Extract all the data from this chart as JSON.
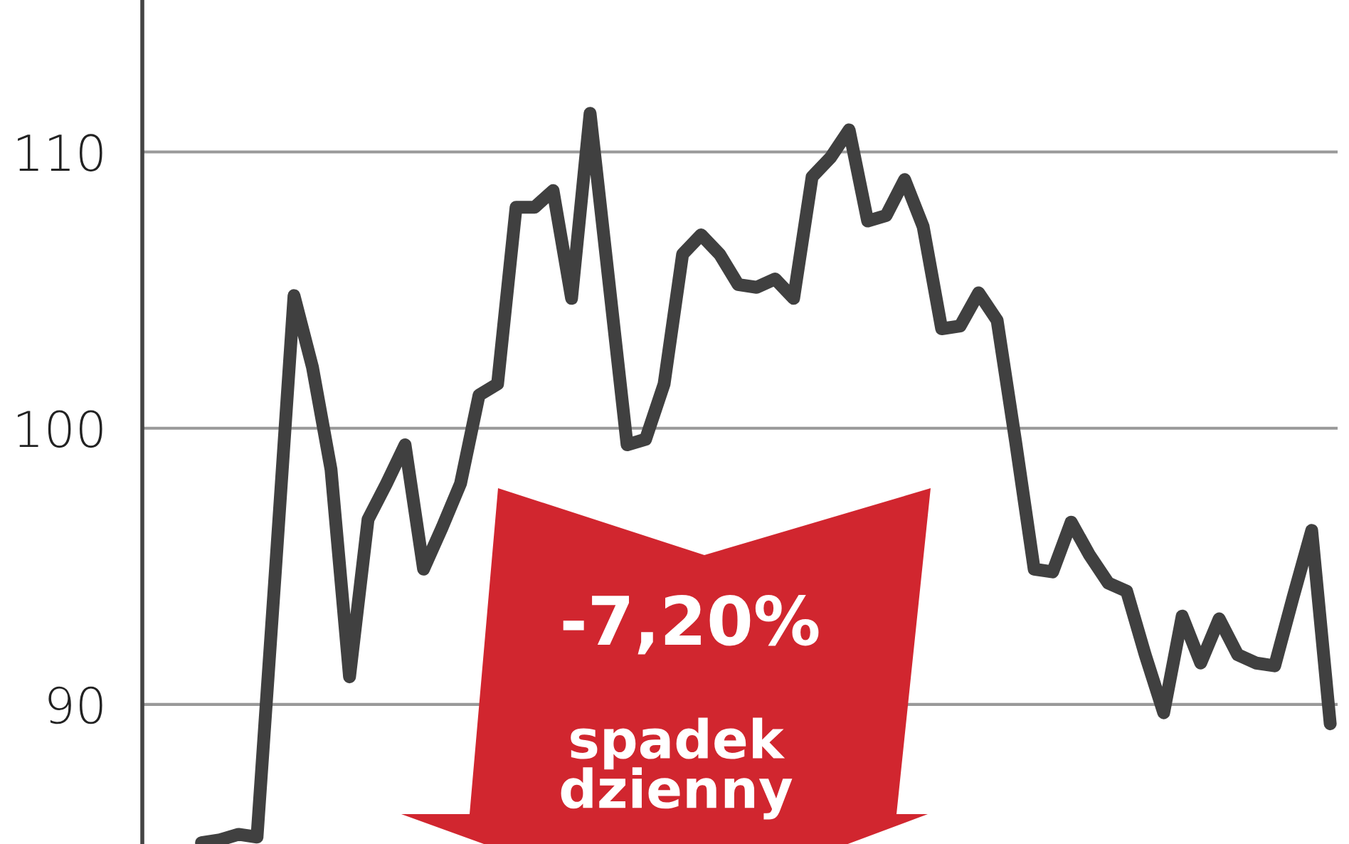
{
  "chart_data": {
    "type": "line",
    "categories": [
      null,
      null,
      null,
      null,
      null,
      null,
      null,
      null,
      null,
      null,
      null,
      null,
      null,
      null,
      null,
      null,
      null,
      null,
      null,
      null,
      null,
      null,
      null,
      null,
      null,
      null,
      null,
      null,
      null,
      null,
      null,
      null,
      null,
      null,
      null,
      null,
      null,
      null,
      null,
      null,
      null,
      null,
      null,
      null,
      null,
      null,
      null,
      null,
      null,
      null,
      null,
      null,
      null,
      null,
      null,
      null,
      null,
      null,
      null,
      null,
      null,
      null
    ],
    "series": [
      {
        "color": "#404040",
        "values": [
          85.0,
          85.1,
          85.3,
          85.2,
          94.9,
          104.8,
          102.2,
          98.5,
          91.0,
          96.7,
          98.0,
          99.4,
          94.9,
          96.4,
          98.0,
          101.2,
          101.6,
          108.0,
          108.0,
          108.6,
          104.7,
          111.4,
          105.4,
          99.4,
          99.6,
          101.6,
          106.3,
          107.0,
          106.3,
          105.2,
          105.1,
          105.4,
          104.7,
          109.1,
          109.8,
          110.8,
          107.5,
          107.7,
          109.0,
          107.3,
          103.6,
          103.7,
          104.9,
          103.9,
          99.5,
          94.9,
          94.8,
          96.6,
          95.4,
          94.4,
          94.1,
          91.8,
          89.7,
          93.2,
          91.5,
          93.1,
          91.8,
          91.5,
          91.4,
          93.9,
          96.3,
          89.3
        ]
      }
    ],
    "ylim": [
      84.95,
      115.5
    ],
    "yticks": [
      90,
      100,
      110
    ],
    "grid": "y",
    "marker": "none",
    "line_style": "solid",
    "tick_labels": "y",
    "annotations": [
      "-7,20%",
      "spadek\ndzienny"
    ]
  }
}
